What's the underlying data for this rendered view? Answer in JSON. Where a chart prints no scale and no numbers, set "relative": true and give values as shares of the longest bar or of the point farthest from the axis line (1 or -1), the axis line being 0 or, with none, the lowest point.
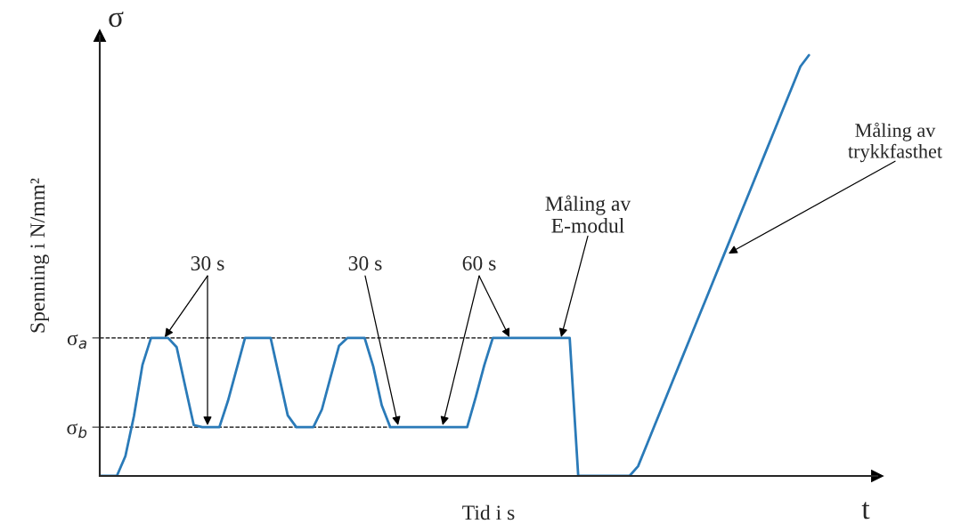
{
  "chart_data": {
    "type": "line",
    "relative": true,
    "xlabel": "Tid i s",
    "ylabel": "Spenning i N/mm²",
    "grid": false,
    "legend": false,
    "marker": "none",
    "line_style": "solid",
    "categories": [
      null,
      null,
      null,
      null,
      null,
      null,
      null,
      null,
      null,
      null,
      null,
      null,
      null,
      null,
      null,
      null,
      null,
      null,
      null,
      null,
      null,
      null,
      null,
      null,
      null,
      null,
      null,
      null,
      null,
      null,
      null,
      null,
      null,
      null,
      null,
      null,
      null,
      null,
      null,
      null,
      null,
      null,
      null,
      null,
      null,
      null,
      null,
      null,
      null,
      null,
      null,
      null,
      null,
      null,
      null,
      null,
      null,
      null,
      null,
      null,
      null,
      null,
      null,
      null,
      null,
      null,
      null,
      null,
      null,
      null,
      null,
      null,
      null,
      null,
      null,
      null,
      null,
      null,
      null,
      null,
      null,
      null,
      null,
      null,
      null,
      null,
      null,
      null,
      null,
      null,
      null,
      null
    ],
    "series": [
      {
        "color": "#2a7ab8",
        "values": [
          0,
          0,
          0,
          0.047,
          0.142,
          0.264,
          0.328,
          0.328,
          0.328,
          0.306,
          0.213,
          0.121,
          0.116,
          0.116,
          0.116,
          0.178,
          0.253,
          0.328,
          0.328,
          0.328,
          0.328,
          0.236,
          0.144,
          0.116,
          0.116,
          0.116,
          0.158,
          0.234,
          0.309,
          0.328,
          0.328,
          0.328,
          0.261,
          0.168,
          0.116,
          0.116,
          0.116,
          0.116,
          0.116,
          0.116,
          0.116,
          0.116,
          0.116,
          0.116,
          0.187,
          0.263,
          0.328,
          0.328,
          0.328,
          0.328,
          0.328,
          0.328,
          0.328,
          0.328,
          0.328,
          0.328,
          0,
          0,
          0,
          0,
          0,
          0,
          0,
          0.023,
          0.073,
          0.123,
          0.173,
          0.223,
          0.273,
          0.323,
          0.373,
          0.423,
          0.473,
          0.523,
          0.573,
          0.623,
          0.673,
          0.723,
          0.773,
          0.823,
          0.873,
          0.923,
          0.973,
          1,
          null,
          null,
          null,
          null,
          null,
          null,
          null,
          null
        ]
      }
    ],
    "ref_lines": [
      {
        "axis": "y",
        "value": 0.328,
        "label": "σ$_{a}$",
        "line_style": "dashed",
        "color": "#000000"
      },
      {
        "axis": "y",
        "value": 0.116,
        "label": "σ$_{b}$",
        "line_style": "dashed",
        "color": "#000000"
      }
    ],
    "annotations": [
      "σ",
      "t",
      "30 s",
      "30 s",
      "60 s",
      "Måling av\nE-modul",
      "Måling av\ntrykkfasthet"
    ]
  }
}
